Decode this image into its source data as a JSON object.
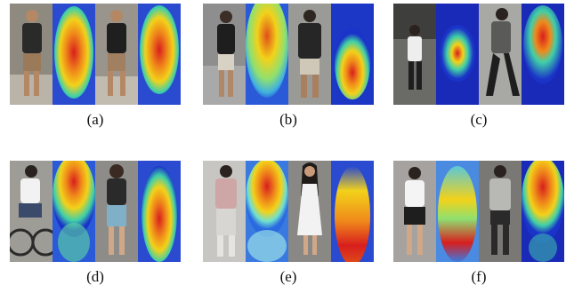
{
  "figure": {
    "panels": [
      {
        "label": "(a)"
      },
      {
        "label": "(b)"
      },
      {
        "label": "(c)"
      },
      {
        "label": "(d)"
      },
      {
        "label": "(e)"
      },
      {
        "label": "(f)"
      }
    ]
  },
  "colors": {
    "heat_hot": "#d81e1e",
    "heat_warm": "#f2d21a",
    "heat_mid": "#3fd0a8",
    "heat_cold": "#1a33c8"
  }
}
